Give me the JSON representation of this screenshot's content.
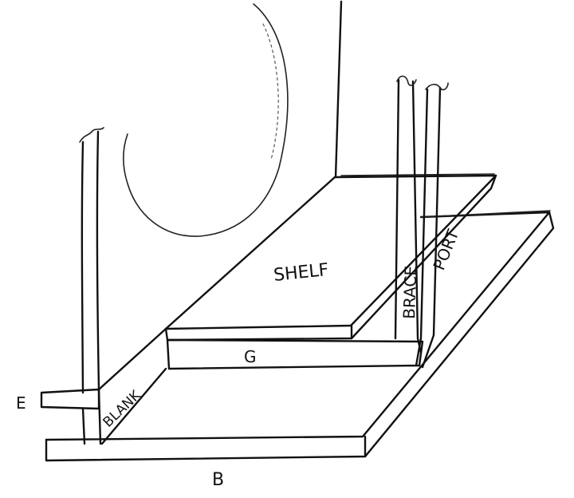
{
  "labels": {
    "shelf": "SHELF",
    "brace": "BRACE",
    "port": "PORT",
    "blank": "BLANK",
    "g": "G",
    "e": "E",
    "b": "B"
  }
}
